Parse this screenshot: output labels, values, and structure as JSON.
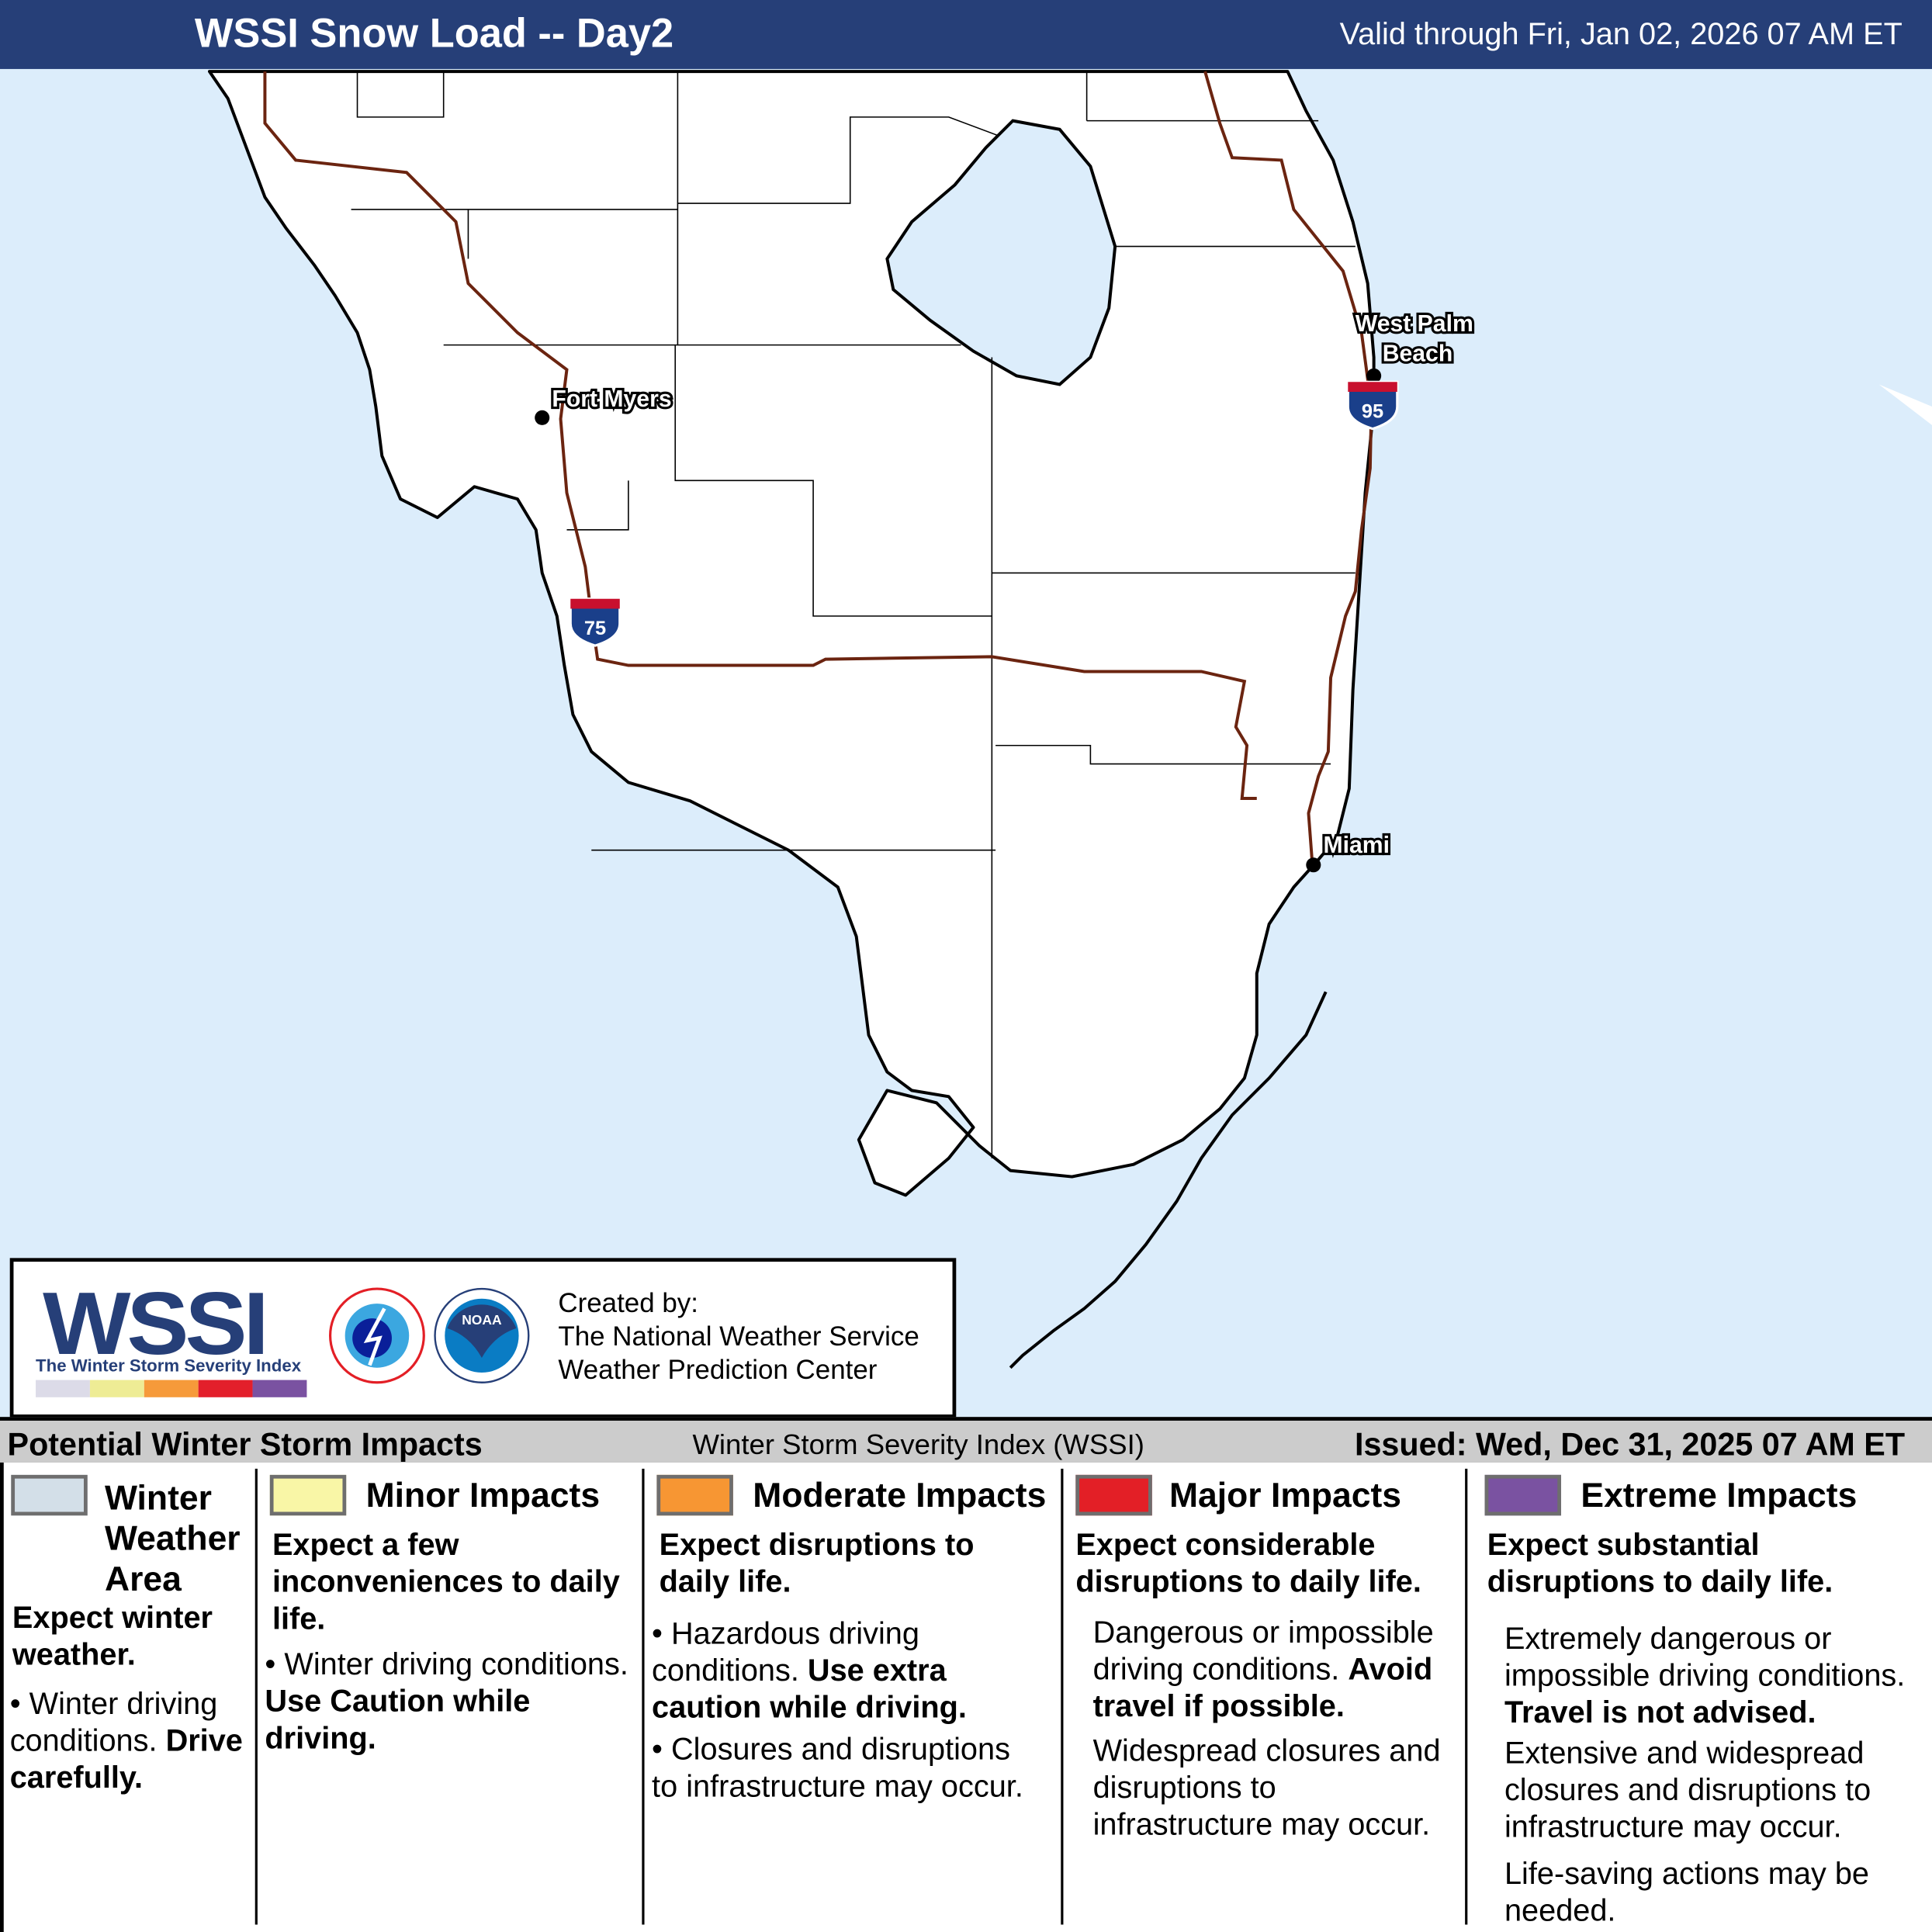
{
  "header": {
    "title": "WSSI Snow Load -- Day2",
    "valid": "Valid through Fri, Jan 02, 2026 07 AM ET",
    "bg_color": "#263f78"
  },
  "map": {
    "cities": [
      {
        "name": "Fort Myers"
      },
      {
        "name": "West Palm Beach",
        "line1": "West Palm",
        "line2": "Beach"
      },
      {
        "name": "Miami"
      }
    ],
    "interstates": [
      "75",
      "95"
    ],
    "water_color": "#dcedfb",
    "road_color": "#6b2410"
  },
  "credit": {
    "logo": "WSSI",
    "logo_tagline": "The Winter Storm Severity Index",
    "noaa": "NOAA",
    "created_by": "Created by:",
    "org1": "The National Weather Service",
    "org2": "Weather Prediction Center"
  },
  "band": {
    "left": "Potential Winter Storm Impacts",
    "middle": "Winter Storm Severity Index (WSSI)",
    "right": "Issued: Wed, Dec 31, 2025 07 AM ET"
  },
  "legend": [
    {
      "color": "#d3dfe8",
      "title1": "Winter",
      "title2": "Weather",
      "title3": "Area",
      "expect": "Expect winter weather.",
      "d1": "Winter driving conditions.",
      "d1b": "Drive carefully."
    },
    {
      "color": "#f9f6a6",
      "title": "Minor Impacts",
      "expect": "Expect a few inconveniences to daily life.",
      "d1": "Winter driving conditions.",
      "d1b": "Use Caution while driving."
    },
    {
      "color": "#f79633",
      "title": "Moderate Impacts",
      "expect": "Expect disruptions to daily life.",
      "d1": "Hazardous driving conditions.",
      "d1b": "Use extra caution while driving.",
      "d2": "Closures and disruptions to infrastructure may occur."
    },
    {
      "color": "#e31f26",
      "title": "Major Impacts",
      "expect": "Expect considerable disruptions to daily life.",
      "d1": "Dangerous or impossible driving conditions.",
      "d1b": "Avoid travel if possible.",
      "d2": "Widespread closures and disruptions to infrastructure may occur."
    },
    {
      "color": "#7a52a1",
      "title": "Extreme Impacts",
      "expect": "Expect substantial disruptions to daily life.",
      "d1": "Extremely dangerous or impossible driving conditions.",
      "d1b": "Travel is not advised.",
      "d2": "Extensive and widespread closures and disruptions to infrastructure may occur.",
      "d3": "Life-saving actions may be needed."
    }
  ]
}
